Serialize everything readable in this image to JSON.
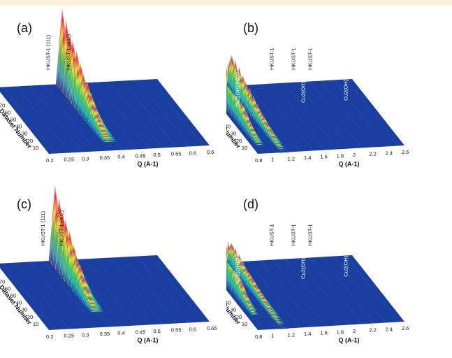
{
  "chart_data": [
    {
      "type": "area",
      "panel": "(a)",
      "x_label": "Q (A-1)",
      "y_label": "Dataset Number",
      "x_ticks": [
        "0.2",
        "0.25",
        "0.3",
        "0.35",
        "0.4",
        "0.45",
        "0.5",
        "0.55",
        "0.6",
        "0.6"
      ],
      "y_ticks": [
        "10",
        "20",
        "30",
        "40",
        "50",
        "60",
        "70",
        "80",
        "90"
      ],
      "xlim": [
        0.2,
        0.6
      ],
      "ylim": [
        1,
        95
      ],
      "peak_labels": [
        {
          "text": "HKUST-1 (111)",
          "q": 0.32
        },
        {
          "text": "HKUST-1 (002)",
          "q": 0.36
        }
      ],
      "peaks": [
        {
          "q": 0.36,
          "max_height": 1.0,
          "start_dataset": 10
        }
      ]
    },
    {
      "type": "area",
      "panel": "(b)",
      "x_label": "Q (A-1)",
      "y_label": "Dataset Number",
      "x_ticks": [
        "0.8",
        "1",
        "1.2",
        "1.4",
        "1.6",
        "1.8",
        "2",
        "2.2",
        "2.4",
        "2.6"
      ],
      "y_ticks": [
        "10",
        "20",
        "30",
        "40",
        "50",
        "60",
        "70",
        "80",
        "90"
      ],
      "xlim": [
        0.6,
        2.7
      ],
      "ylim": [
        1,
        95
      ],
      "peak_labels": [
        {
          "text": "HKUST-1",
          "q": 0.62
        },
        {
          "text": "HKUST-1",
          "q": 0.7
        },
        {
          "text": "HKUST-1",
          "q": 1.5
        },
        {
          "text": "HKUST-1",
          "q": 1.75
        },
        {
          "text": "HKUST-1",
          "q": 2.05
        },
        {
          "text": "Cu2(OH)3NO3",
          "q": 0.95
        },
        {
          "text": "Cu2(OH)3NO3",
          "q": 1.95
        },
        {
          "text": "Cu2(OH)3NO3",
          "q": 2.5
        }
      ],
      "peaks": [
        {
          "q": 0.7,
          "max_height": 1.0,
          "start_dataset": 10
        },
        {
          "q": 0.95,
          "max_height": 0.55,
          "start_dataset": 1
        }
      ]
    },
    {
      "type": "area",
      "panel": "(c)",
      "x_label": "Q (A-1)",
      "y_label": "Dataset Number",
      "x_ticks": [
        "0.2",
        "0.25",
        "0.3",
        "0.35",
        "0.4",
        "0.45",
        "0.5",
        "0.55",
        "0.6",
        "0.65"
      ],
      "y_ticks": [
        "10",
        "20",
        "30",
        "40",
        "50",
        "60",
        "70",
        "80",
        "90"
      ],
      "xlim": [
        0.2,
        0.65
      ],
      "ylim": [
        1,
        95
      ],
      "peak_labels": [
        {
          "text": "HKUST-1 (111)",
          "q": 0.32
        },
        {
          "text": "HKUST-1 (002)",
          "q": 0.36
        }
      ],
      "peaks": [
        {
          "q": 0.36,
          "max_height": 1.0,
          "start_dataset": 20
        }
      ]
    },
    {
      "type": "area",
      "panel": "(d)",
      "x_label": "Q (A-1)",
      "y_label": "Dataset Number",
      "x_ticks": [
        "0.8",
        "1",
        "1.2",
        "1.4",
        "1.6",
        "1.8",
        "2",
        "2.2",
        "2.4",
        "2.6"
      ],
      "y_ticks": [
        "10",
        "20",
        "30",
        "40",
        "50",
        "60",
        "70",
        "80",
        "90"
      ],
      "xlim": [
        0.6,
        2.7
      ],
      "ylim": [
        1,
        95
      ],
      "peak_labels": [
        {
          "text": "HKUST-1",
          "q": 0.62
        },
        {
          "text": "HKUST-",
          "q": 0.7
        },
        {
          "text": "HKUST-1",
          "q": 1.5
        },
        {
          "text": "HKUST-1",
          "q": 1.75
        },
        {
          "text": "HKUST-1",
          "q": 2.05
        },
        {
          "text": "Cu2(OH)3NO3",
          "q": 0.95
        },
        {
          "text": "Cu2(OH)3NO3",
          "q": 1.95
        },
        {
          "text": "Cu2(OH)3NO3",
          "q": 2.5
        }
      ],
      "peaks": [
        {
          "q": 0.7,
          "max_height": 1.0,
          "start_dataset": 20
        },
        {
          "q": 0.95,
          "max_height": 0.35,
          "start_dataset": 1
        }
      ]
    }
  ],
  "colors": {
    "surface_base": "#1a3fa0",
    "surface_mid": "#2aa6c8",
    "surface_peak": "#e8334a",
    "surface_top": "#f2a7b8",
    "background": "#ffffff",
    "top_band": "#fbf1d9"
  }
}
